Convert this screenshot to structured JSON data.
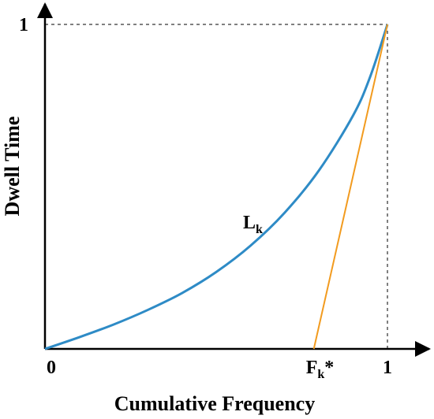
{
  "chart_data": {
    "type": "line",
    "xlabel": "Cumulative Frequency",
    "ylabel": "Dwell Time",
    "xlim": [
      0,
      1
    ],
    "ylim": [
      0,
      1
    ],
    "x_ticks": [
      {
        "value": 0,
        "label": "0"
      },
      {
        "value": 1,
        "label": "1"
      }
    ],
    "y_ticks": [
      {
        "value": 1,
        "label": "1"
      }
    ],
    "grid": false,
    "series": [
      {
        "name": "",
        "color": "#2e8bc6",
        "x": [
          0,
          0.1,
          0.2,
          0.3,
          0.4,
          0.5,
          0.6,
          0.7,
          0.8,
          0.9,
          0.95,
          1.0
        ],
        "y": [
          0,
          0.036,
          0.075,
          0.12,
          0.172,
          0.237,
          0.318,
          0.42,
          0.55,
          0.72,
          0.84,
          1.0
        ]
      },
      {
        "name": "",
        "color": "#f29b1f",
        "x": [
          0.785,
          1.0
        ],
        "y": [
          0,
          1.0
        ]
      }
    ],
    "reference_lines": [
      {
        "type": "vertical",
        "x": 1,
        "y_range": [
          0,
          1
        ],
        "style": "dashed"
      },
      {
        "type": "horizontal",
        "y": 1,
        "x_range": [
          0,
          1
        ],
        "style": "dashed"
      }
    ],
    "annotations": {
      "curve_label": {
        "main": "L",
        "sub": "k",
        "x": 0.6,
        "y": 0.4
      },
      "intercept_label": {
        "main": "F",
        "sub": "k",
        "suffix": "*",
        "x": 0.785
      }
    }
  }
}
